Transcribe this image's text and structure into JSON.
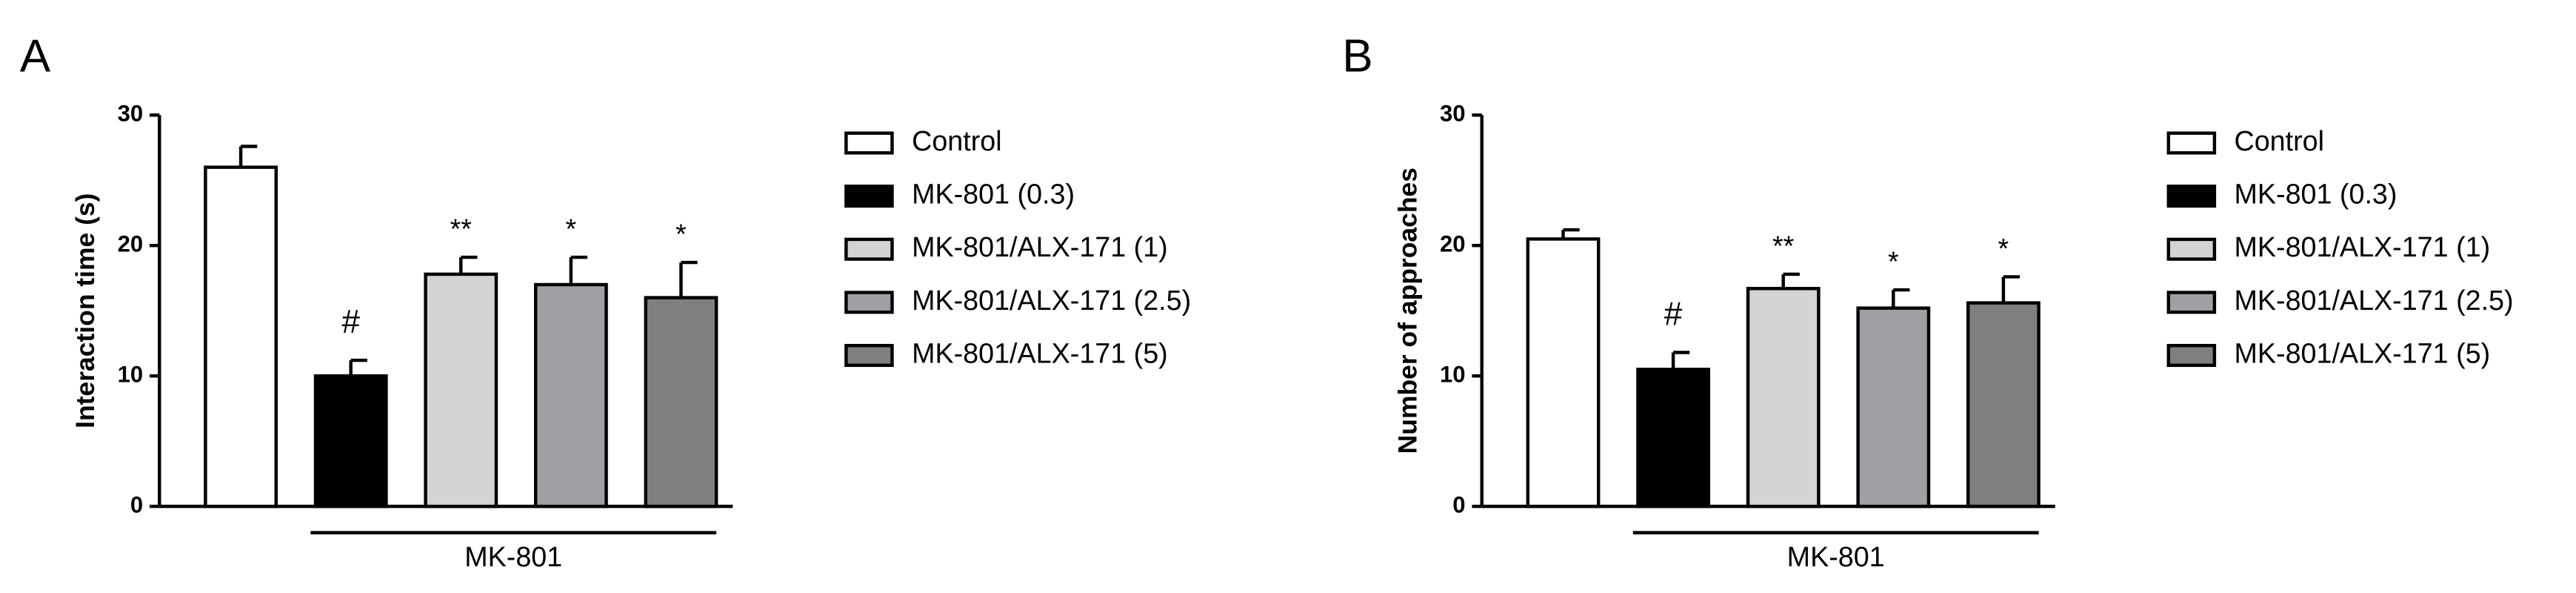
{
  "chart_data": [
    {
      "type": "bar",
      "panel": "A",
      "ylabel": "Interaction time (s)",
      "categories": [
        "Control",
        "MK-801 (0.3)",
        "MK-801/ALX-171 (1)",
        "MK-801/ALX-171 (2.5)",
        "MK-801/ALX-171 (5)"
      ],
      "values": [
        26,
        10,
        17.8,
        17,
        16
      ],
      "errors": [
        1.6,
        1.2,
        1.3,
        2.1,
        2.7
      ],
      "colors": [
        "#ffffff",
        "#000000",
        "#d4d4d4",
        "#a0a0a4",
        "#7f7f7f"
      ],
      "annotations": [
        null,
        "#",
        "**",
        "*",
        "*"
      ],
      "group_label": "MK-801",
      "ylim": [
        0,
        30
      ],
      "yticks": [
        0,
        10,
        20,
        30
      ]
    },
    {
      "type": "bar",
      "panel": "B",
      "ylabel": "Number of approaches",
      "categories": [
        "Control",
        "MK-801 (0.3)",
        "MK-801/ALX-171 (1)",
        "MK-801/ALX-171 (2.5)",
        "MK-801/ALX-171 (5)"
      ],
      "values": [
        20.5,
        10.5,
        16.7,
        15.2,
        15.6
      ],
      "errors": [
        0.7,
        1.3,
        1.1,
        1.4,
        2.0
      ],
      "colors": [
        "#ffffff",
        "#000000",
        "#d4d4d4",
        "#a0a0a4",
        "#7f7f7f"
      ],
      "annotations": [
        null,
        "#",
        "**",
        "*",
        "*"
      ],
      "group_label": "MK-801",
      "ylim": [
        0,
        30
      ],
      "yticks": [
        0,
        10,
        20,
        30
      ]
    }
  ]
}
